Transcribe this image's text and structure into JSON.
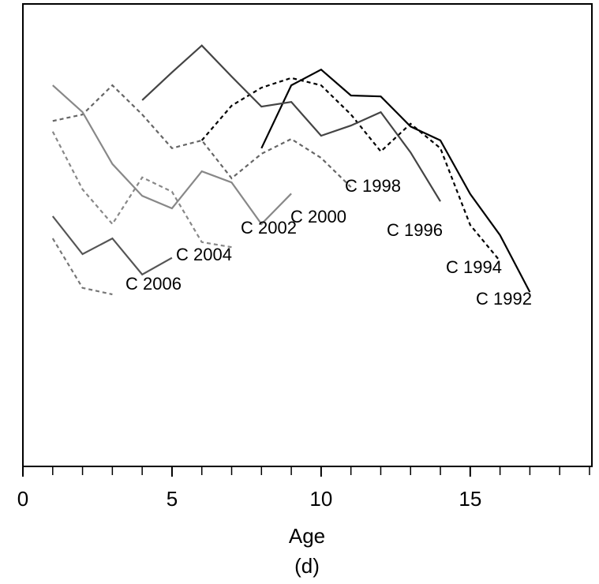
{
  "chart_data": {
    "type": "line",
    "x_label": "Age",
    "panel_label": "(d)",
    "xlim": [
      0,
      19.08
    ],
    "ylim": [
      0,
      100
    ],
    "xticks": [
      0,
      5,
      10,
      15
    ],
    "xminor_ticks": [
      1,
      2,
      3,
      4,
      6,
      7,
      8,
      9,
      11,
      12,
      13,
      14,
      16,
      17,
      18,
      19
    ],
    "series": [
      {
        "name": "C 1992",
        "color": "#000000",
        "dashed": false,
        "x": [
          8,
          9,
          10,
          11,
          12,
          13,
          14,
          15,
          16,
          17
        ],
        "values": [
          68.8,
          82.4,
          85.8,
          80.2,
          80.0,
          73.5,
          70.5,
          58.9,
          50.0,
          37.7
        ]
      },
      {
        "name": "C 1994",
        "color": "#000000",
        "dashed": true,
        "x": [
          6,
          7,
          8,
          9,
          10,
          11,
          12,
          13,
          14,
          15,
          16
        ],
        "values": [
          70.5,
          78.0,
          81.9,
          84.0,
          82.4,
          76.1,
          68.1,
          74.1,
          68.8,
          52.2,
          44.4
        ]
      },
      {
        "name": "C 1996",
        "color": "#444444",
        "dashed": false,
        "x": [
          4,
          5,
          6,
          7,
          8,
          9,
          10,
          11,
          12,
          13,
          14
        ],
        "values": [
          79.2,
          85.2,
          91.0,
          84.3,
          77.8,
          78.8,
          71.5,
          73.7,
          76.6,
          67.9,
          57.3
        ]
      },
      {
        "name": "C 1998",
        "color": "#666666",
        "dashed": true,
        "x": [
          1,
          2,
          3,
          4,
          5,
          6,
          7,
          8,
          9,
          10,
          11
        ],
        "values": [
          74.7,
          76.1,
          82.4,
          76.1,
          68.8,
          70.5,
          62.3,
          67.6,
          70.8,
          66.7,
          60.4
        ]
      },
      {
        "name": "C 2000",
        "color": "#888888",
        "dashed": false,
        "x": [
          1,
          2,
          3,
          4,
          5,
          6,
          7,
          8,
          9
        ],
        "values": [
          82.4,
          76.6,
          65.4,
          58.5,
          55.8,
          63.8,
          61.4,
          52.4,
          59.0
        ]
      },
      {
        "name": "C 2002",
        "color": "#888888",
        "dashed": true,
        "x": [
          1,
          2,
          3,
          4,
          5,
          6,
          7
        ],
        "values": [
          72.4,
          59.9,
          52.4,
          62.5,
          59.4,
          48.5,
          47.4
        ]
      },
      {
        "name": "C 2004",
        "color": "#555555",
        "dashed": false,
        "x": [
          1,
          2,
          3,
          4,
          5
        ],
        "values": [
          54.1,
          45.9,
          49.3,
          41.5,
          45.1
        ]
      },
      {
        "name": "C 2006",
        "color": "#777777",
        "dashed": true,
        "x": [
          1,
          2,
          3
        ],
        "values": [
          49.3,
          38.6,
          37.2
        ]
      }
    ]
  }
}
